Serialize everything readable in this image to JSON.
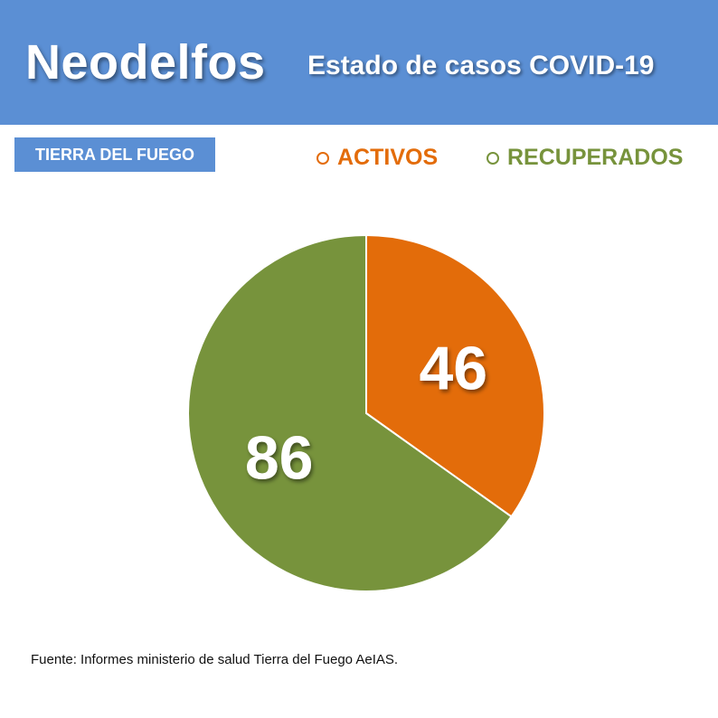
{
  "header": {
    "brand": "Neodelfos",
    "subtitle": "Estado de casos COVID-19"
  },
  "region_label": "TIERRA DEL FUEGO",
  "footer": {
    "source": "Fuente: Informes ministerio de salud Tierra del Fuego AeIAS."
  },
  "colors": {
    "header_bg": "#5b8fd4",
    "activos": "#e36c0a",
    "recuperados": "#77933c"
  },
  "chart_data": {
    "type": "pie",
    "title": "Estado de casos COVID-19",
    "legend_position": "top-right",
    "slices": [
      {
        "label": "ACTIVOS",
        "value": 46,
        "color": "#e36c0a"
      },
      {
        "label": "RECUPERADOS",
        "value": 86,
        "color": "#77933c"
      }
    ]
  }
}
